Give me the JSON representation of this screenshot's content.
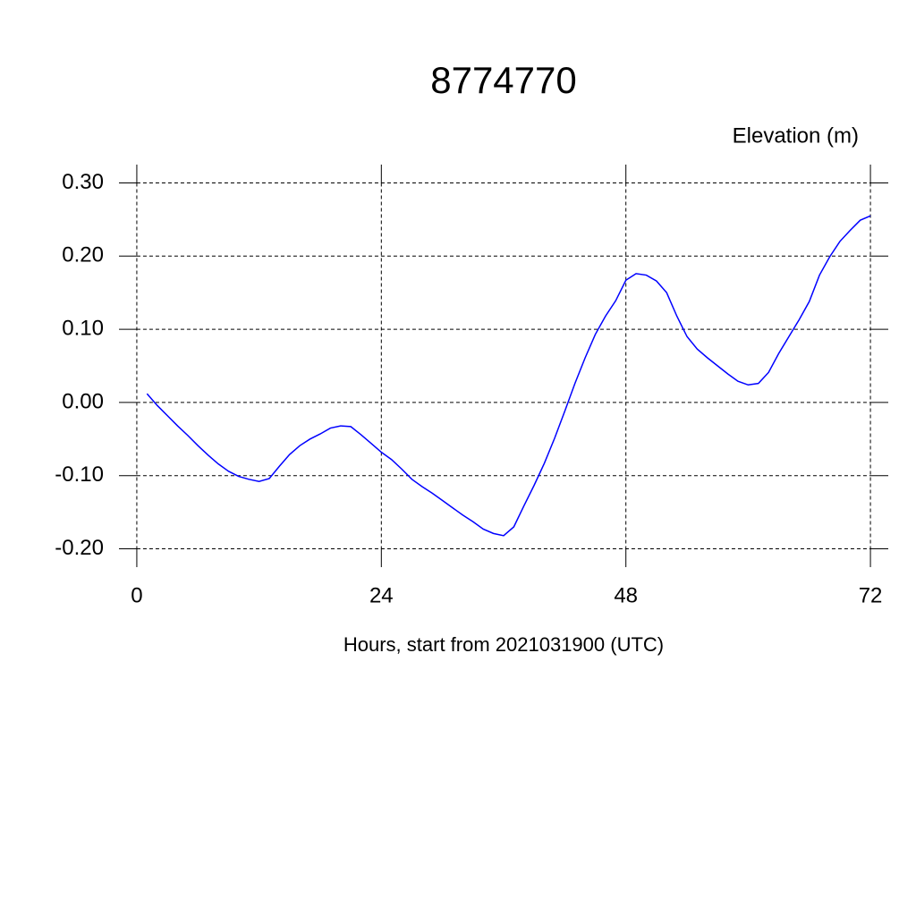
{
  "chart_data": {
    "type": "line",
    "title": "8774770",
    "ylabel": "Elevation (m)",
    "xlabel": "Hours, start from 2021031900 (UTC)",
    "x": [
      1,
      2,
      3,
      4,
      5,
      6,
      7,
      8,
      9,
      10,
      11,
      12,
      13,
      14,
      15,
      16,
      17,
      18,
      19,
      20,
      21,
      22,
      23,
      24,
      25,
      26,
      27,
      28,
      29,
      30,
      31,
      32,
      33,
      34,
      35,
      36,
      37,
      38,
      39,
      40,
      41,
      42,
      43,
      44,
      45,
      46,
      47,
      48,
      49,
      50,
      51,
      52,
      53,
      54,
      55,
      56,
      57,
      58,
      59,
      60,
      61,
      62,
      63,
      64,
      65,
      66,
      67,
      68,
      69,
      70,
      71,
      72
    ],
    "series": [
      {
        "name": "Elevation",
        "color": "#0000ff",
        "values": [
          0.012,
          -0.004,
          -0.018,
          -0.032,
          -0.045,
          -0.059,
          -0.072,
          -0.084,
          -0.094,
          -0.101,
          -0.105,
          -0.108,
          -0.104,
          -0.087,
          -0.071,
          -0.059,
          -0.05,
          -0.043,
          -0.035,
          -0.032,
          -0.033,
          -0.044,
          -0.056,
          -0.068,
          -0.078,
          -0.091,
          -0.105,
          -0.115,
          -0.124,
          -0.134,
          -0.144,
          -0.154,
          -0.163,
          -0.173,
          -0.179,
          -0.182,
          -0.17,
          -0.141,
          -0.113,
          -0.083,
          -0.049,
          -0.012,
          0.026,
          0.061,
          0.093,
          0.118,
          0.139,
          0.167,
          0.176,
          0.174,
          0.166,
          0.15,
          0.118,
          0.09,
          0.073,
          0.061,
          0.05,
          0.039,
          0.029,
          0.024,
          0.026,
          0.041,
          0.067,
          0.09,
          0.113,
          0.138,
          0.174,
          0.199,
          0.22,
          0.235,
          0.249,
          0.255
        ]
      }
    ],
    "xlim": [
      -1.75,
      73.75
    ],
    "ylim": [
      -0.225,
      0.325
    ],
    "xticks": [
      0,
      24,
      48,
      72
    ],
    "yticks": [
      {
        "value": -0.2,
        "label": "-0.20"
      },
      {
        "value": -0.1,
        "label": "-0.10"
      },
      {
        "value": 0,
        "label": "0.00"
      },
      {
        "value": 0.1,
        "label": "0.10"
      },
      {
        "value": 0.2,
        "label": "0.20"
      },
      {
        "value": 0.3,
        "label": "0.30"
      }
    ],
    "grid": true
  }
}
